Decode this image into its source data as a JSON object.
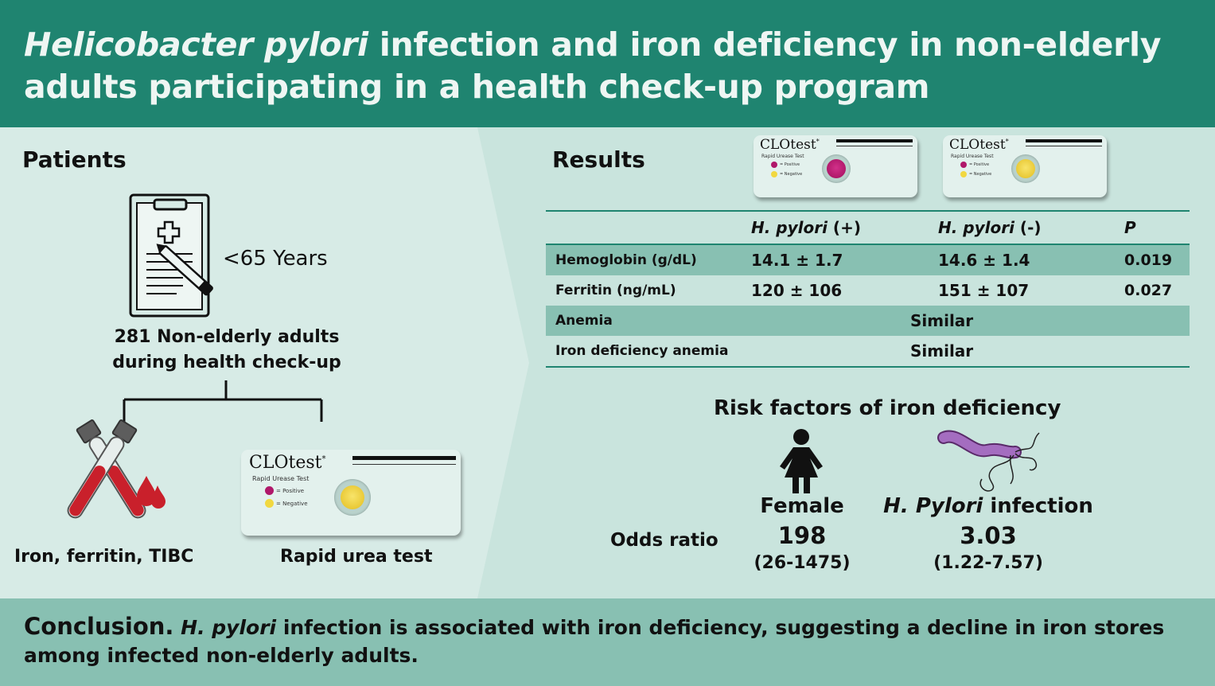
{
  "header": {
    "title_italic": "Helicobacter pylori",
    "title_rest": " infection and iron deficiency in non-elderly adults participating in a health check-up program"
  },
  "patients": {
    "heading": "Patients",
    "age": "<65 Years",
    "cohort_line1": "281 Non-elderly adults",
    "cohort_line2": "during health check-up",
    "branch_left_label": "Iron, ferritin, TIBC",
    "branch_right_label": "Rapid urea test",
    "icons": [
      "clipboard-icon",
      "blood-tubes-icon",
      "clotest-card-icon"
    ]
  },
  "clotest": {
    "brand": "CLOtest",
    "mark": "*",
    "subtitle": "Rapid Urease Test",
    "positive": "= Positive",
    "negative": "= Negative"
  },
  "results": {
    "heading": "Results",
    "columns": {
      "pos_italic": "H. pylori",
      "pos_suffix": " (+)",
      "neg_italic": "H. pylori",
      "neg_suffix": " (-)",
      "p": "P"
    },
    "rows": [
      {
        "label": "Hemoglobin (g/dL)",
        "pos": "14.1 ± 1.7",
        "neg": "14.6 ± 1.4",
        "p": "0.019"
      },
      {
        "label": "Ferritin (ng/mL)",
        "pos": "120 ± 106",
        "neg": "151 ± 107",
        "p": "0.027"
      },
      {
        "label": "Anemia",
        "value": "Similar"
      },
      {
        "label": "Iron deficiency anemia",
        "value": "Similar"
      }
    ]
  },
  "risk": {
    "heading": "Risk factors of iron deficiency",
    "odds_label": "Odds ratio",
    "female": {
      "name": "Female",
      "value": "198",
      "ci": "(26-1475)"
    },
    "hpylori": {
      "name_italic": "H. Pylori",
      "name_suffix": " infection",
      "value": "3.03",
      "ci": "(1.22-7.57)"
    }
  },
  "conclusion": {
    "heading": "Conclusion.",
    "italic": "H. pylori",
    "text": " infection is associated with iron deficiency, suggesting a decline in iron stores among infected non-elderly adults."
  },
  "colors": {
    "header": "#1f8470",
    "background": "#c9e4dd",
    "left_panel": "#d7ebe6",
    "row_shade": "#88c0b2",
    "positive": "#b0186a",
    "negative": "#f1d840"
  }
}
